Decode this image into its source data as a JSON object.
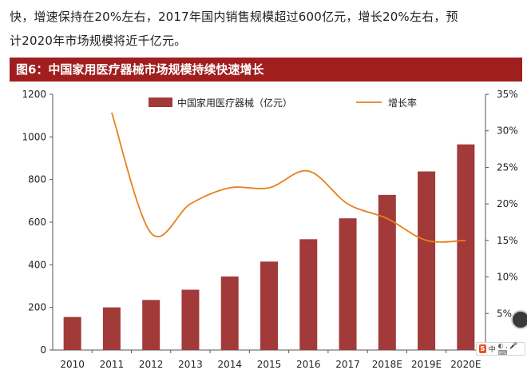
{
  "intro": {
    "line1": "快，增速保持在20%左右，2017年国内销售规模超过600亿元，增长20%左右，预",
    "line2": "计2020年市场规模将近千亿元。"
  },
  "figure": {
    "title": "图6：中国家用医疗器械市场规模持续快速增长"
  },
  "chart_data": {
    "type": "bar",
    "categories": [
      "2010",
      "2011",
      "2012",
      "2013",
      "2014",
      "2015",
      "2016",
      "2017",
      "2018E",
      "2019E",
      "2020E"
    ],
    "series": [
      {
        "name": "中国家用医疗器械（亿元）",
        "type": "bar",
        "axis": "left",
        "color": "#a23a3a",
        "values": [
          155,
          200,
          235,
          283,
          345,
          415,
          520,
          618,
          728,
          838,
          965
        ]
      },
      {
        "name": "增长率",
        "type": "line",
        "axis": "right",
        "color": "#e8801a",
        "values": [
          null,
          0.325,
          0.16,
          0.2,
          0.222,
          0.222,
          0.245,
          0.2,
          0.18,
          0.15,
          0.15
        ]
      }
    ],
    "left_axis": {
      "min": 0,
      "max": 1200,
      "ticks": [
        0,
        200,
        400,
        600,
        800,
        1000,
        1200
      ],
      "tick_labels": [
        "0",
        "200",
        "400",
        "600",
        "800",
        "1000",
        "1200"
      ]
    },
    "right_axis": {
      "min": 0,
      "max": 0.35,
      "ticks": [
        0.05,
        0.1,
        0.15,
        0.2,
        0.25,
        0.3,
        0.35
      ],
      "tick_labels": [
        "5%",
        "10%",
        "15%",
        "20%",
        "25%",
        "30%",
        "35%"
      ]
    },
    "legend": {
      "bar_label": "中国家用医疗器械（亿元）",
      "line_label": "增长率",
      "placement": "top"
    }
  },
  "ime_toolbar": {
    "logo": "S",
    "mode": "中",
    "glyphs": "◐ , 🎤 ⌨"
  }
}
